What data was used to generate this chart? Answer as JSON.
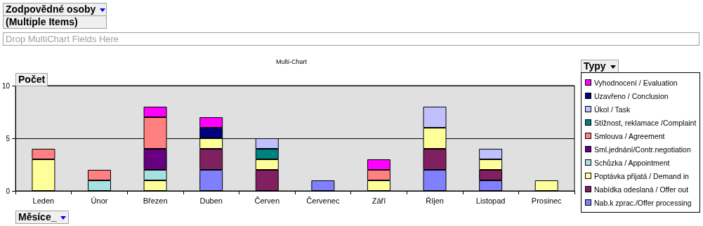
{
  "chart_data": {
    "type": "bar",
    "stacked": true,
    "title": "Multi-Chart",
    "xlabel": "Měsíce_",
    "ylabel": "Počet",
    "legend_title": "Typy",
    "annotations": [
      "Zodpovědné osoby",
      "(Multiple Items)",
      "Drop MultiChart Fields Here"
    ],
    "categories": [
      "Leden",
      "Únor",
      "Březen",
      "Duben",
      "Červen",
      "Červenec",
      "Září",
      "Říjen",
      "Listopad",
      "Prosinec"
    ],
    "ylim": [
      0,
      10
    ],
    "yticks": [
      0,
      5,
      10
    ],
    "grid": "y",
    "legend": "right",
    "series": [
      {
        "name": "Nab.k zprac./Offer processing",
        "color": "#8080ff",
        "values": [
          null,
          null,
          null,
          2,
          null,
          1,
          null,
          2,
          1,
          null
        ]
      },
      {
        "name": "Nabídka odeslaná / Offer out",
        "color": "#802060",
        "values": [
          null,
          null,
          null,
          2,
          2,
          null,
          null,
          2,
          1,
          null
        ]
      },
      {
        "name": "Poptávka přijatá / Demand in",
        "color": "#ffff99",
        "values": [
          3,
          null,
          1,
          1,
          1,
          null,
          1,
          2,
          1,
          1
        ]
      },
      {
        "name": "Schůzka / Appointment",
        "color": "#a6e0e0",
        "values": [
          null,
          1,
          1,
          null,
          null,
          null,
          null,
          null,
          null,
          null
        ]
      },
      {
        "name": "Sml.jednání/Contr.negotiation",
        "color": "#660080",
        "values": [
          null,
          null,
          2,
          null,
          null,
          null,
          null,
          null,
          null,
          null
        ]
      },
      {
        "name": "Smlouva / Agreement",
        "color": "#ff8080",
        "values": [
          1,
          1,
          3,
          null,
          null,
          null,
          1,
          null,
          null,
          null
        ]
      },
      {
        "name": "Stížnost, reklamace /Complaint",
        "color": "#008080",
        "values": [
          null,
          null,
          null,
          null,
          1,
          null,
          null,
          null,
          null,
          null
        ]
      },
      {
        "name": "Úkol / Task",
        "color": "#c0c0ff",
        "values": [
          null,
          null,
          null,
          null,
          1,
          null,
          null,
          2,
          1,
          null
        ]
      },
      {
        "name": "Uzavřeno / Conclusion",
        "color": "#000080",
        "values": [
          null,
          null,
          null,
          1,
          null,
          null,
          null,
          null,
          null,
          null
        ]
      },
      {
        "name": "Vyhodnocení / Evaluation",
        "color": "#ff00ff",
        "values": [
          null,
          null,
          1,
          1,
          null,
          null,
          1,
          null,
          null,
          null
        ]
      }
    ]
  }
}
